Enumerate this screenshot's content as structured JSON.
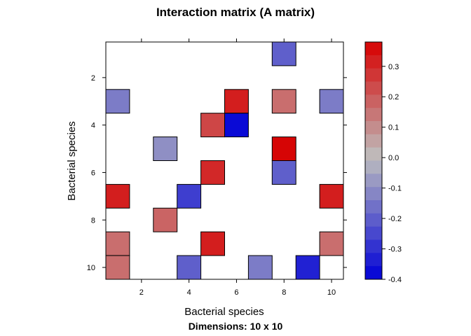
{
  "chart_data": {
    "type": "heatmap",
    "title": "Interaction matrix (A matrix)",
    "subtitle": "Dimensions: 10 x 10",
    "xlabel": "Bacterial species",
    "ylabel": "Bacterial species",
    "x_ticks": [
      "2",
      "4",
      "6",
      "8",
      "10"
    ],
    "y_ticks": [
      "2",
      "4",
      "6",
      "8",
      "10"
    ],
    "colorbar_ticks": [
      "0.3",
      "0.2",
      "0.1",
      "0.0",
      "-0.1",
      "-0.2",
      "-0.3",
      "-0.4"
    ],
    "colorbar_range": [
      -0.4,
      0.38
    ],
    "rows": 10,
    "cols": 10,
    "grid": false,
    "colors": {
      "positive": "#d70000",
      "zero": "#bebebe",
      "negative": "#0000d7"
    },
    "cells": [
      {
        "row": 1,
        "col": 8,
        "value": -0.2
      },
      {
        "row": 3,
        "col": 1,
        "value": -0.14
      },
      {
        "row": 3,
        "col": 6,
        "value": 0.32
      },
      {
        "row": 3,
        "col": 8,
        "value": 0.16
      },
      {
        "row": 3,
        "col": 10,
        "value": -0.14
      },
      {
        "row": 4,
        "col": 5,
        "value": 0.24
      },
      {
        "row": 4,
        "col": 6,
        "value": -0.38
      },
      {
        "row": 5,
        "col": 3,
        "value": -0.1
      },
      {
        "row": 5,
        "col": 8,
        "value": 0.37
      },
      {
        "row": 6,
        "col": 5,
        "value": 0.3
      },
      {
        "row": 6,
        "col": 8,
        "value": -0.2
      },
      {
        "row": 7,
        "col": 1,
        "value": 0.32
      },
      {
        "row": 7,
        "col": 4,
        "value": -0.27
      },
      {
        "row": 7,
        "col": 10,
        "value": 0.32
      },
      {
        "row": 8,
        "col": 3,
        "value": 0.18
      },
      {
        "row": 9,
        "col": 1,
        "value": 0.16
      },
      {
        "row": 9,
        "col": 5,
        "value": 0.32
      },
      {
        "row": 9,
        "col": 10,
        "value": 0.16
      },
      {
        "row": 10,
        "col": 1,
        "value": 0.16
      },
      {
        "row": 10,
        "col": 4,
        "value": -0.2
      },
      {
        "row": 10,
        "col": 7,
        "value": -0.14
      },
      {
        "row": 10,
        "col": 9,
        "value": -0.33
      }
    ]
  }
}
